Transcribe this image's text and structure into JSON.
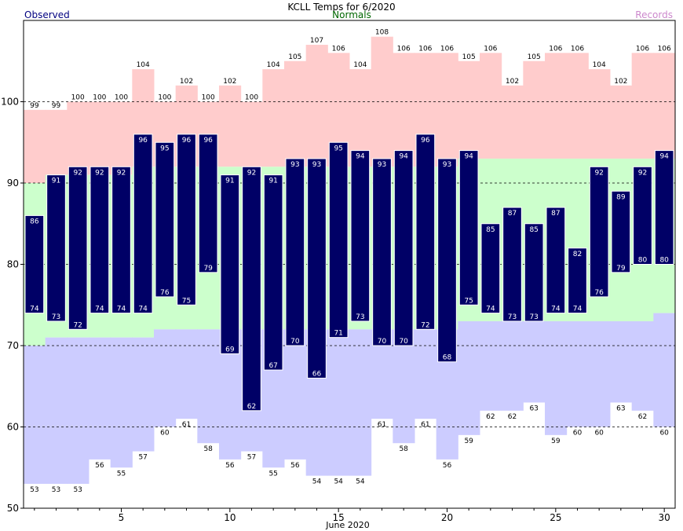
{
  "chart_data": {
    "type": "bar",
    "title": "KCLL Temps for 6/2020",
    "legend": {
      "observed": "Observed",
      "normals": "Normals",
      "records": "Records"
    },
    "xlabel": "June 2020",
    "ylim": [
      50,
      110
    ],
    "yticks": [
      50,
      60,
      70,
      80,
      90,
      100
    ],
    "xticks": [
      5,
      10,
      15,
      20,
      25,
      30
    ],
    "grid_values": [
      60,
      70,
      80,
      90,
      100
    ],
    "colors": {
      "observed": "#000066",
      "normals": "#ccffcc",
      "records": "#ffcccc",
      "record_low": "#ccccff",
      "legend_observed": "#000080",
      "legend_normals": "#006600",
      "legend_records": "#cc88cc"
    },
    "days": [
      1,
      2,
      3,
      4,
      5,
      6,
      7,
      8,
      9,
      10,
      11,
      12,
      13,
      14,
      15,
      16,
      17,
      18,
      19,
      20,
      21,
      22,
      23,
      24,
      25,
      26,
      27,
      28,
      29,
      30
    ],
    "series": [
      {
        "name": "Observed",
        "key": "obs_high",
        "values": [
          86,
          91,
          92,
          92,
          92,
          96,
          95,
          96,
          96,
          91,
          92,
          91,
          93,
          93,
          95,
          94,
          93,
          94,
          96,
          93,
          94,
          85,
          87,
          85,
          87,
          82,
          92,
          89,
          92,
          94
        ]
      },
      {
        "name": "Observed",
        "key": "obs_low",
        "values": [
          74,
          73,
          72,
          74,
          74,
          74,
          76,
          75,
          79,
          69,
          62,
          67,
          70,
          66,
          71,
          73,
          70,
          70,
          72,
          68,
          75,
          74,
          73,
          73,
          74,
          74,
          76,
          79,
          80,
          80
        ]
      },
      {
        "name": "Records",
        "key": "rec_high",
        "values": [
          99,
          99,
          100,
          100,
          100,
          104,
          100,
          102,
          100,
          102,
          100,
          104,
          105,
          107,
          106,
          104,
          108,
          106,
          106,
          106,
          105,
          106,
          102,
          105,
          106,
          106,
          104,
          102,
          106,
          106
        ]
      },
      {
        "name": "Records",
        "key": "rec_low",
        "values": [
          53,
          53,
          53,
          56,
          55,
          57,
          60,
          61,
          58,
          56,
          57,
          55,
          56,
          54,
          54,
          54,
          61,
          58,
          61,
          56,
          59,
          62,
          62,
          63,
          59,
          60,
          60,
          63,
          62,
          60
        ]
      },
      {
        "name": "Normals",
        "key": "norm_high",
        "values": [
          90,
          91,
          91,
          91,
          91,
          92,
          92,
          92,
          92,
          92,
          92,
          92,
          92,
          92,
          92,
          92,
          92,
          92,
          92,
          92,
          93,
          93,
          93,
          93,
          93,
          93,
          93,
          93,
          93,
          93
        ]
      },
      {
        "name": "Normals",
        "key": "norm_low",
        "values": [
          70,
          71,
          71,
          71,
          71,
          71,
          72,
          72,
          72,
          72,
          72,
          72,
          72,
          72,
          72,
          72,
          72,
          72,
          72,
          72,
          73,
          73,
          73,
          73,
          73,
          73,
          73,
          73,
          73,
          74
        ]
      }
    ]
  }
}
